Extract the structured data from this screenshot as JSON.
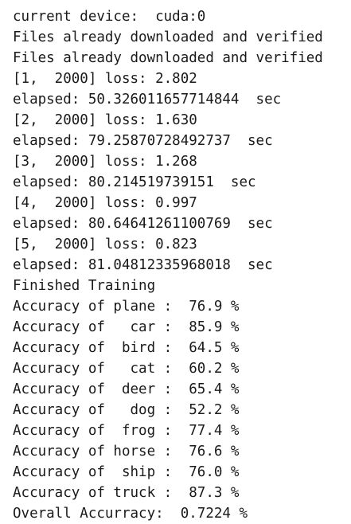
{
  "console": {
    "lines": [
      "current device:  cuda:0",
      "Files already downloaded and verified",
      "Files already downloaded and verified",
      "[1,  2000] loss: 2.802",
      "elapsed: 50.326011657714844  sec",
      "[2,  2000] loss: 1.630",
      "elapsed: 79.25870728492737  sec",
      "[3,  2000] loss: 1.268",
      "elapsed: 80.214519739151  sec",
      "[4,  2000] loss: 0.997",
      "elapsed: 80.64641261100769  sec",
      "[5,  2000] loss: 0.823",
      "elapsed: 81.04812335968018  sec",
      "Finished Training",
      "Accuracy of plane :  76.9 %",
      "Accuracy of   car :  85.9 %",
      "Accuracy of  bird :  64.5 %",
      "Accuracy of   cat :  60.2 %",
      "Accuracy of  deer :  65.4 %",
      "Accuracy of   dog :  52.2 %",
      "Accuracy of  frog :  77.4 %",
      "Accuracy of horse :  76.6 %",
      "Accuracy of  ship :  76.0 %",
      "Accuracy of truck :  87.3 %",
      "Overall Accurracy:  0.7224 %"
    ]
  }
}
